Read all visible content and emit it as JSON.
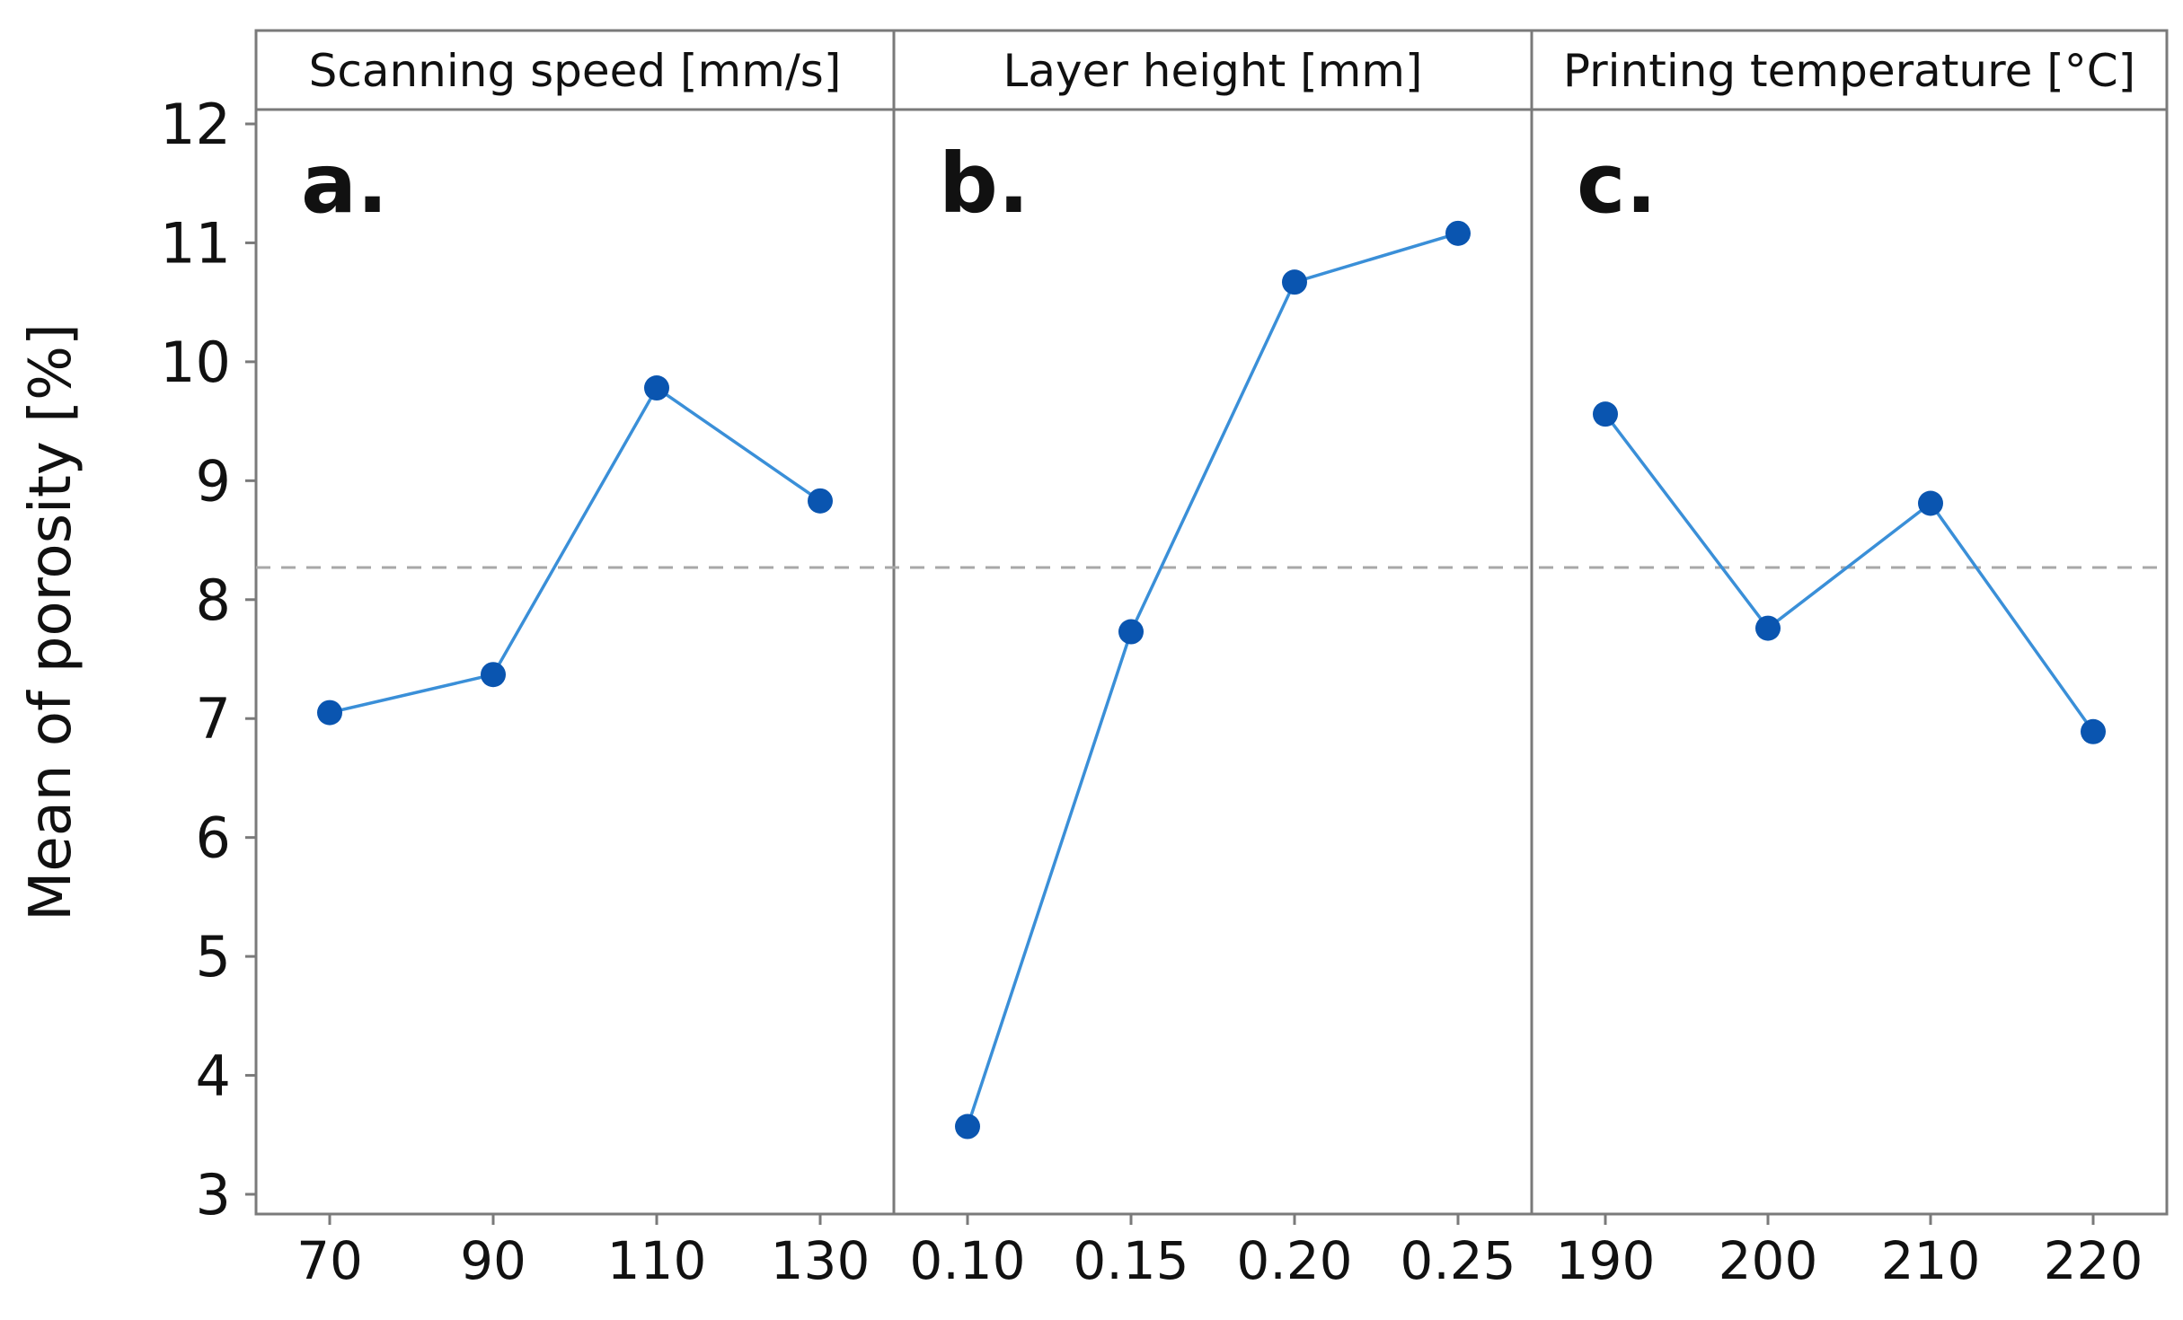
{
  "chart_data": {
    "type": "line",
    "ylabel": "Mean of porosity [%]",
    "ylim": [
      3,
      12
    ],
    "yticks": [
      3,
      4,
      5,
      6,
      7,
      8,
      9,
      10,
      11,
      12
    ],
    "reference_line": 8.27,
    "line_color": "#3a8fd8",
    "marker_color": "#0a55b0",
    "reference_color": "#a8a8a8",
    "frame_color": "#7a7a7a",
    "panels": [
      {
        "letter": "a.",
        "title": "Scanning speed [mm/s]",
        "categories": [
          "70",
          "90",
          "110",
          "130"
        ],
        "values": [
          7.05,
          7.37,
          9.78,
          8.83
        ]
      },
      {
        "letter": "b.",
        "title": "Layer height [mm]",
        "categories": [
          "0.10",
          "0.15",
          "0.20",
          "0.25"
        ],
        "values": [
          3.57,
          7.73,
          10.67,
          11.08
        ]
      },
      {
        "letter": "c.",
        "title": "Printing temperature [°C]",
        "categories": [
          "190",
          "200",
          "210",
          "220"
        ],
        "values": [
          9.56,
          7.76,
          8.81,
          6.89
        ]
      }
    ]
  }
}
